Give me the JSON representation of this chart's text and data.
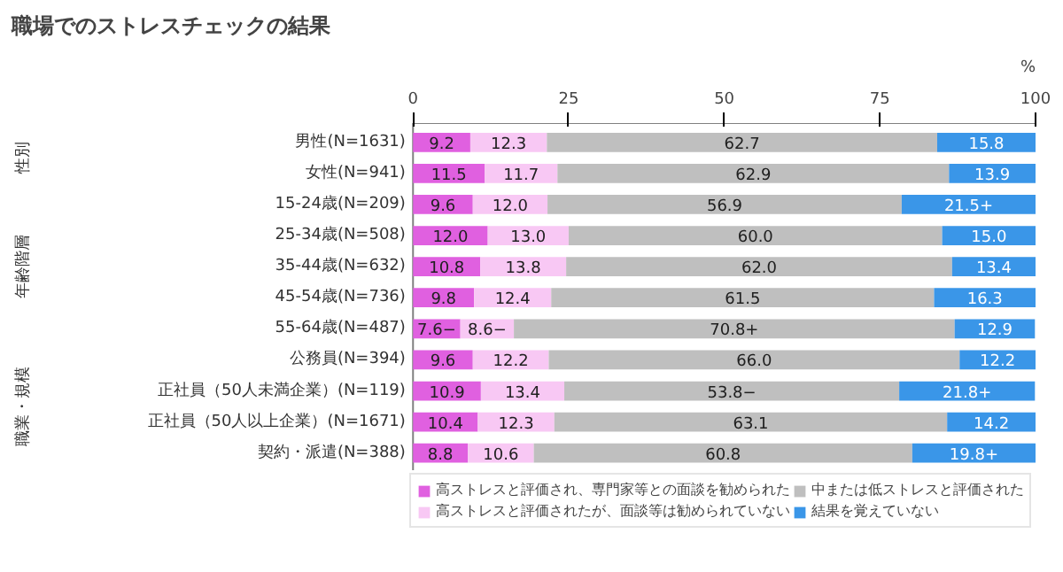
{
  "chart_data": {
    "type": "bar",
    "orientation": "horizontal",
    "stacked": true,
    "title": "職場でのストレスチェックの結果",
    "xlabel": "%",
    "categories": [
      "男性(N=1631)",
      "女性(N=941)",
      "15-24歳(N=209)",
      "25-34歳(N=508)",
      "35-44歳(N=632)",
      "45-54歳(N=736)",
      "55-64歳(N=487)",
      "公務員(N=394)",
      "正社員（50人未満企業）(N=119)",
      "正社員（50人以上企業）(N=1671)",
      "契約・派遣(N=388)"
    ],
    "series": [
      {
        "name": "高ストレスと評価され、専門家等との面談を勧められた",
        "color": "#e060e0",
        "values": [
          9.2,
          11.5,
          9.6,
          12.0,
          10.8,
          9.8,
          7.6,
          9.6,
          10.9,
          10.4,
          8.8
        ],
        "value_labels": [
          "9.2",
          "11.5",
          "9.6",
          "12.0",
          "10.8",
          "9.8",
          "7.6−",
          "9.6",
          "10.9",
          "10.4",
          "8.8"
        ]
      },
      {
        "name": "高ストレスと評価されたが、面談等は勧められていない",
        "color": "#f8c8f4",
        "values": [
          12.3,
          11.7,
          12.0,
          13.0,
          13.8,
          12.4,
          8.6,
          12.2,
          13.4,
          12.3,
          10.6
        ],
        "value_labels": [
          "12.3",
          "11.7",
          "12.0",
          "13.0",
          "13.8",
          "12.4",
          "8.6−",
          "12.2",
          "13.4",
          "12.3",
          "10.6"
        ]
      },
      {
        "name": "中または低ストレスと評価された",
        "color": "#bfbfbf",
        "values": [
          62.7,
          62.9,
          56.9,
          60.0,
          62.0,
          61.5,
          70.8,
          66.0,
          53.8,
          63.1,
          60.8
        ],
        "value_labels": [
          "62.7",
          "62.9",
          "56.9",
          "60.0",
          "62.0",
          "61.5",
          "70.8+",
          "66.0",
          "53.8−",
          "63.1",
          "60.8"
        ]
      },
      {
        "name": "結果を覚えていない",
        "color": "#3a96e8",
        "values": [
          15.8,
          13.9,
          21.5,
          15.0,
          13.4,
          16.3,
          12.9,
          12.2,
          21.8,
          14.2,
          19.8
        ],
        "value_labels": [
          "15.8",
          "13.9",
          "21.5+",
          "15.0",
          "13.4",
          "16.3",
          "12.9",
          "12.2",
          "21.8+",
          "14.2",
          "19.8+"
        ]
      }
    ],
    "xlim": [
      0,
      100
    ],
    "xticks": [
      0,
      25,
      50,
      75,
      100
    ],
    "legend": "bottom",
    "grid": false,
    "annotations": [
      "性別",
      "年齢階層",
      "職業・規模"
    ]
  }
}
